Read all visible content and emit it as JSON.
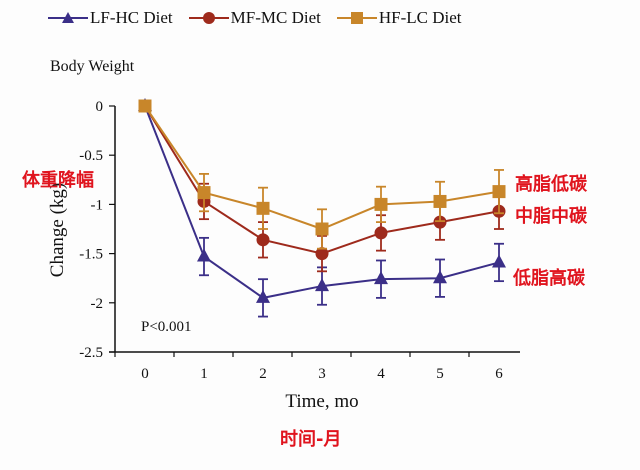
{
  "chart_data": {
    "type": "line",
    "title": "Body Weight",
    "xlabel": "Time, mo",
    "ylabel": "Change (kg)",
    "x": [
      0,
      1,
      2,
      3,
      4,
      5,
      6
    ],
    "xticks": [
      "0",
      "1",
      "2",
      "3",
      "4",
      "5",
      "6"
    ],
    "yticks": [
      "0",
      "-0.5",
      "-1",
      "-1.5",
      "-2",
      "-2.5"
    ],
    "ytick_values": [
      0,
      -0.5,
      -1,
      -1.5,
      -2,
      -2.5
    ],
    "xlim": [
      -0.5,
      6.5
    ],
    "ylim": [
      -2.5,
      0
    ],
    "grid": false,
    "legend_position": "top",
    "annotation": "P<0.001",
    "series": [
      {
        "name": "LF-HC Diet",
        "marker": "triangle",
        "color": "#3b2f88",
        "values": [
          0,
          -1.53,
          -1.95,
          -1.83,
          -1.76,
          -1.75,
          -1.59
        ],
        "error": [
          0,
          0.19,
          0.19,
          0.19,
          0.19,
          0.19,
          0.19
        ]
      },
      {
        "name": "MF-MC Diet",
        "marker": "circle",
        "color": "#9e2a1c",
        "values": [
          0,
          -0.97,
          -1.36,
          -1.5,
          -1.29,
          -1.18,
          -1.07
        ],
        "error": [
          0,
          0.18,
          0.18,
          0.18,
          0.18,
          0.18,
          0.18
        ]
      },
      {
        "name": "HF-LC Diet",
        "marker": "square",
        "color": "#c8862a",
        "values": [
          0,
          -0.88,
          -1.04,
          -1.25,
          -1.0,
          -0.97,
          -0.87
        ],
        "error": [
          0,
          0.19,
          0.21,
          0.2,
          0.18,
          0.2,
          0.22
        ]
      }
    ]
  },
  "annotations_cn": {
    "yaxis_label": "体重降幅",
    "xaxis_label": "时间-月",
    "series_labels": [
      "低脂高碳",
      "中脂中碳",
      "高脂低碳"
    ]
  }
}
